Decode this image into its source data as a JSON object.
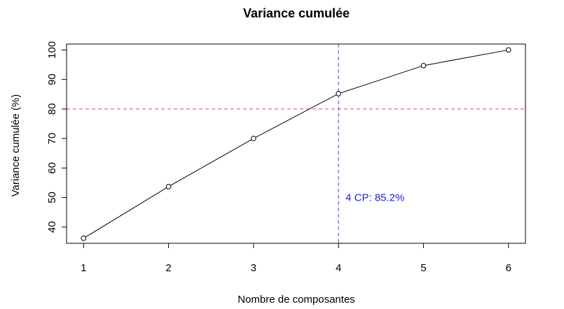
{
  "chart_data": {
    "type": "line",
    "title": "Variance cumulée",
    "xlabel": "Nombre de composantes",
    "ylabel": "Variance cumulée (%)",
    "x": [
      1,
      2,
      3,
      4,
      5,
      6
    ],
    "values": [
      36.2,
      53.7,
      70.0,
      85.2,
      94.7,
      100.0
    ],
    "xlim": [
      0.8,
      6.2
    ],
    "ylim": [
      34.5,
      102
    ],
    "xticks": [
      1,
      2,
      3,
      4,
      5,
      6
    ],
    "yticks": [
      40,
      50,
      60,
      70,
      80,
      90,
      100
    ],
    "hline": {
      "y": 80,
      "color": "#e8404a"
    },
    "vline": {
      "x": 4,
      "color": "#4040c8"
    },
    "annotation": {
      "text": "4 CP: 85.2%",
      "x": 4,
      "y": 50,
      "color": "#2020e0"
    },
    "grid": false,
    "line_color": "#000000",
    "marker": "open-circle"
  }
}
